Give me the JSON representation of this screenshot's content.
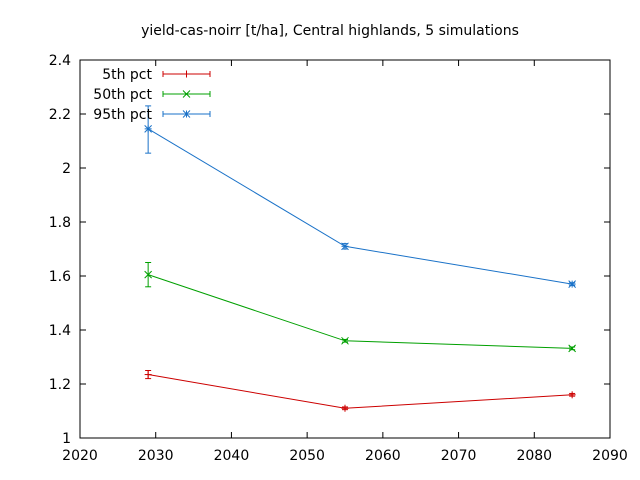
{
  "chart_data": {
    "type": "line",
    "title": "yield-cas-noirr [t/ha], Central highlands, 5 simulations",
    "xlabel": "",
    "ylabel": "",
    "xlim": [
      2020,
      2090
    ],
    "ylim": [
      1.0,
      2.4
    ],
    "xticks": [
      2020,
      2030,
      2040,
      2050,
      2060,
      2070,
      2080,
      2090
    ],
    "yticks": [
      1,
      1.2,
      1.4,
      1.6,
      1.8,
      2,
      2.2,
      2.4
    ],
    "xtick_labels": [
      "2020",
      "2030",
      "2040",
      "2050",
      "2060",
      "2070",
      "2080",
      "2090"
    ],
    "ytick_labels": [
      "1",
      "1.2",
      "1.4",
      "1.6",
      "1.8",
      "2",
      "2.2",
      "2.4"
    ],
    "grid": false,
    "legend_position": "top-left",
    "x": [
      2029,
      2055,
      2085
    ],
    "series": [
      {
        "name": "5th pct",
        "color": "#cc0000",
        "marker": "plus",
        "values": [
          1.235,
          1.11,
          1.16
        ],
        "err_low": [
          1.22,
          1.105,
          1.155
        ],
        "err_high": [
          1.25,
          1.115,
          1.165
        ]
      },
      {
        "name": "50th pct",
        "color": "#00a000",
        "marker": "cross",
        "values": [
          1.605,
          1.36,
          1.332
        ],
        "err_low": [
          1.56,
          1.355,
          1.327
        ],
        "err_high": [
          1.65,
          1.365,
          1.337
        ]
      },
      {
        "name": "95th pct",
        "color": "#1a72c8",
        "marker": "star",
        "values": [
          2.145,
          1.71,
          1.57
        ],
        "err_low": [
          2.055,
          1.7,
          1.565
        ],
        "err_high": [
          2.23,
          1.72,
          1.575
        ]
      }
    ]
  }
}
